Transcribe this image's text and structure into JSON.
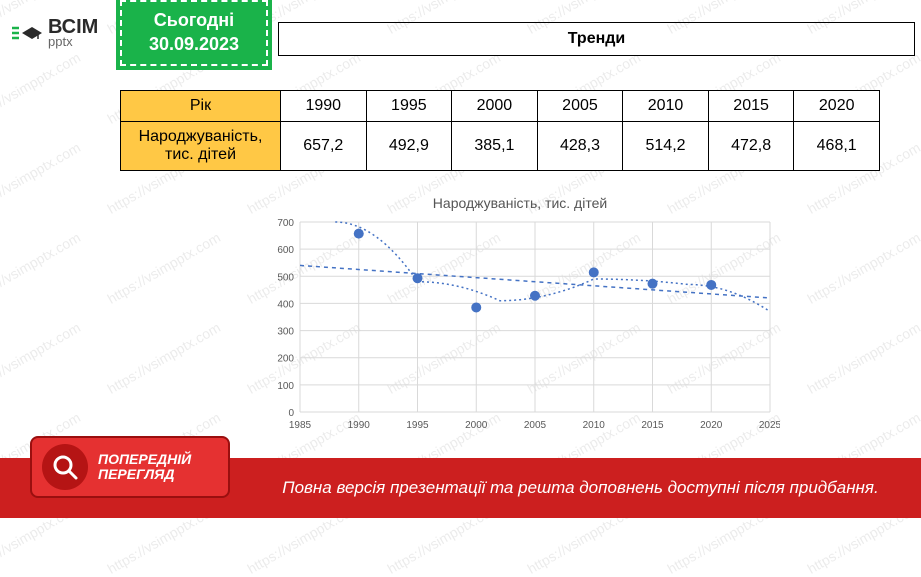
{
  "logo": {
    "line1": "ВСІМ",
    "line2": "pptx"
  },
  "date_badge": {
    "line1": "Сьогодні",
    "line2": "30.09.2023"
  },
  "title": "Тренди",
  "watermark_text": "https://vsimpptx.com",
  "table": {
    "row1_label": "Рік",
    "row2_label": "Народжуваність, тис. дітей",
    "years": [
      "1990",
      "1995",
      "2000",
      "2005",
      "2010",
      "2015",
      "2020"
    ],
    "values": [
      "657,2",
      "492,9",
      "385,1",
      "428,3",
      "514,2",
      "472,8",
      "468,1"
    ]
  },
  "chart": {
    "type": "scatter",
    "title": "Народжуваність, тис. дітей",
    "title_fontsize": 14,
    "title_color": "#595959",
    "background_color": "#ffffff",
    "grid_color": "#d9d9d9",
    "axis_label_color": "#595959",
    "axis_label_fontsize": 10,
    "xlim": [
      1985,
      2025
    ],
    "xtick_step": 5,
    "xticks": [
      1985,
      1990,
      1995,
      2000,
      2005,
      2010,
      2015,
      2020,
      2025
    ],
    "ylim": [
      0,
      700
    ],
    "ytick_step": 100,
    "yticks": [
      0,
      100,
      200,
      300,
      400,
      500,
      600,
      700
    ],
    "series": {
      "marker_style": "circle",
      "marker_size": 5,
      "marker_color": "#4472c4",
      "x": [
        1990,
        1995,
        2000,
        2005,
        2010,
        2015,
        2020
      ],
      "y": [
        657.2,
        492.9,
        385.1,
        428.3,
        514.2,
        472.8,
        468.1
      ]
    },
    "trendlines": [
      {
        "type": "linear",
        "color": "#4472c4",
        "dash": "4 4",
        "width": 1.5,
        "points": [
          [
            1985,
            540
          ],
          [
            2025,
            420
          ]
        ]
      },
      {
        "type": "poly",
        "color": "#4472c4",
        "dash": "2 3",
        "width": 1.5,
        "points": [
          [
            1988,
            700
          ],
          [
            1995,
            480
          ],
          [
            2002,
            410
          ],
          [
            2010,
            490
          ],
          [
            2018,
            470
          ],
          [
            2025,
            370
          ]
        ]
      }
    ]
  },
  "preview_badge": {
    "line1": "ПОПЕРЕДНІЙ",
    "line2": "ПЕРЕГЛЯД"
  },
  "notice": "Повна версія презентації та решта доповнень доступні після придбання."
}
